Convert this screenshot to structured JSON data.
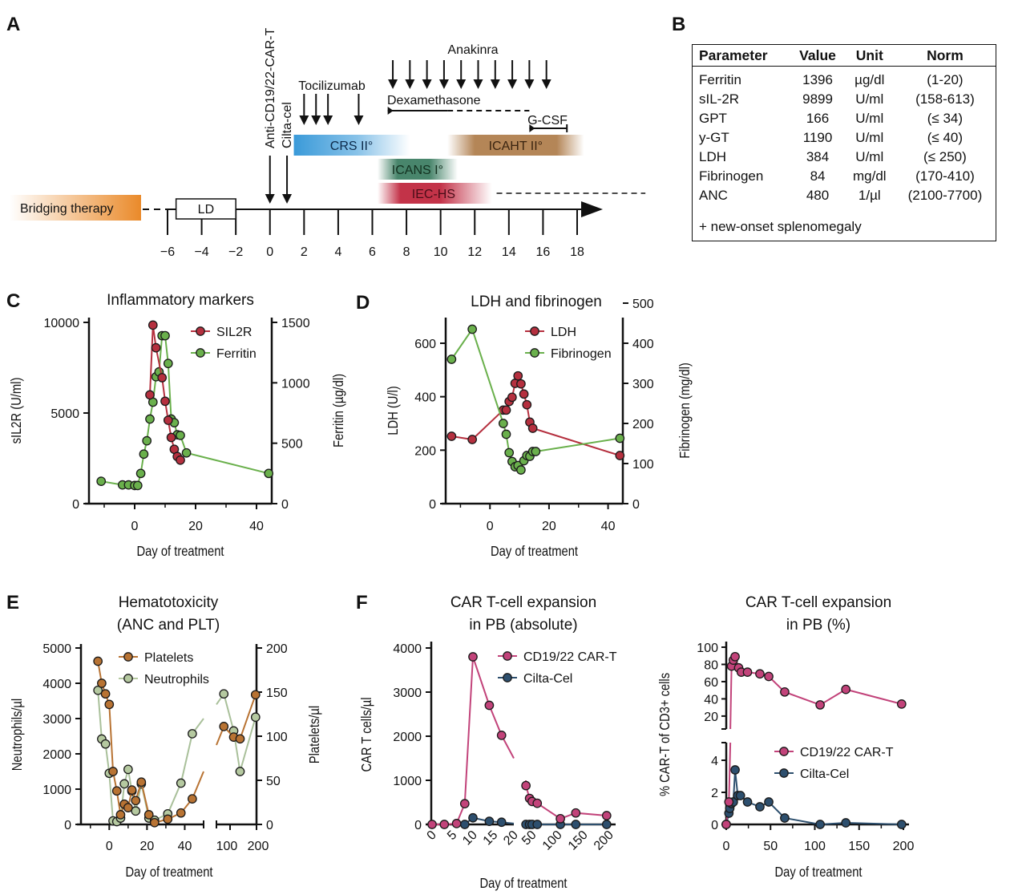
{
  "panel_letters": {
    "A": "A",
    "B": "B",
    "C": "C",
    "D": "D",
    "E": "E",
    "F": "F"
  },
  "timeline": {
    "axis_ticks": [
      "−6",
      "−4",
      "−2",
      "0",
      "2",
      "4",
      "6",
      "8",
      "10",
      "12",
      "14",
      "16",
      "18"
    ],
    "tick_values": [
      -6,
      -4,
      -2,
      0,
      2,
      4,
      6,
      8,
      10,
      12,
      14,
      16,
      18
    ],
    "bridging_label": "Bridging therapy",
    "ld_label": "LD",
    "ld_range": [
      -5.5,
      -2
    ],
    "infusions": [
      {
        "label": "Anti-CD19/22-CAR-T",
        "day": 0
      },
      {
        "label": "Cilta-cel",
        "day": 1
      }
    ],
    "tocilizumab": {
      "label": "Tocilizumab",
      "days": [
        2,
        2.7,
        3.4,
        5.2
      ]
    },
    "anakinra": {
      "label": "Anakinra",
      "days": [
        7.2,
        8.2,
        9.2,
        10.2,
        11.2,
        12.2,
        13.2,
        14.2,
        15.2,
        16.2
      ]
    },
    "dexamethasone": {
      "label": "Dexamethasone",
      "solid": [
        6.9,
        10.4
      ],
      "dashed": [
        10.4,
        15.2
      ]
    },
    "gcsf": {
      "label": "G-CSF",
      "range": [
        15.2,
        17.4
      ]
    },
    "bars": [
      {
        "label": "CRS II°",
        "start": 1.4,
        "end": 8.2,
        "color": "#3a9ad9",
        "row": 0
      },
      {
        "label": "ICAHT II°",
        "start": 10.4,
        "end": 18.4,
        "color": "#b07f4e",
        "row": 0
      },
      {
        "label": "ICANS I°",
        "start": 6.3,
        "end": 11.0,
        "color": "#3f7f64",
        "row": 1
      },
      {
        "label": "IEC-HS",
        "start": 6.3,
        "end": 13.0,
        "color": "#c0283f",
        "row": 2,
        "dashed_to": 22
      }
    ],
    "bridging_color": "#ea8a2a"
  },
  "table_b": {
    "headers": [
      "Parameter",
      "Value",
      "Unit",
      "Norm"
    ],
    "rows": [
      [
        "Ferritin",
        "1396",
        "µg/dl",
        "(1-20)"
      ],
      [
        "sIL-2R",
        "9899",
        "U/ml",
        "(158-613)"
      ],
      [
        "GPT",
        "166",
        "U/ml",
        "(≤ 34)"
      ],
      [
        "y-GT",
        "1190",
        "U/ml",
        "(≤ 40)"
      ],
      [
        "LDH",
        "384",
        "U/ml",
        "(≤ 250)"
      ],
      [
        "Fibrinogen",
        "84",
        "mg/dl",
        "(170-410)"
      ],
      [
        "ANC",
        "480",
        "1/µl",
        "(2100-7700)"
      ]
    ],
    "note": "+ new-onset splenomegaly"
  },
  "chart_data": [
    {
      "id": "C",
      "type": "line",
      "title": "Inflammatory markers",
      "xlabel": "Day of treatment",
      "ylabel": "sIL2R (U/ml)",
      "y2label": "Ferritin (µg/dl)",
      "xlim": [
        -15,
        45
      ],
      "xticks": [
        0,
        20,
        40
      ],
      "xminor": [
        -10,
        10,
        30
      ],
      "ylim": [
        0,
        10000
      ],
      "yticks": [
        0,
        5000,
        10000
      ],
      "y2lim": [
        0,
        1500
      ],
      "y2ticks": [
        0,
        500,
        1000,
        1500
      ],
      "legend": "top-right",
      "series": [
        {
          "name": "SIL2R",
          "axis": "left",
          "color": "#b5303f",
          "x": [
            5,
            6,
            7,
            9,
            10,
            11,
            12,
            13,
            14,
            15
          ],
          "y": [
            6000,
            9850,
            8600,
            6950,
            5650,
            4600,
            3650,
            3000,
            2600,
            2400
          ]
        },
        {
          "name": "Ferritin",
          "axis": "right",
          "color": "#6ab04c",
          "x": [
            -11,
            -4,
            -2,
            0,
            1,
            2,
            3,
            4,
            5,
            6,
            7,
            8,
            9,
            10,
            11,
            12,
            13,
            14,
            15,
            17,
            44
          ],
          "y": [
            185,
            155,
            155,
            150,
            150,
            250,
            410,
            520,
            700,
            840,
            1050,
            1090,
            1390,
            1390,
            1160,
            700,
            670,
            570,
            565,
            420,
            250
          ]
        }
      ]
    },
    {
      "id": "D",
      "type": "line",
      "title": "LDH and fibrinogen",
      "xlabel": "Day of treatment",
      "ylabel": "LDH (U/l)",
      "y2label": "Fibrinogen (mg/dl)",
      "xlim": [
        -15,
        45
      ],
      "xticks": [
        0,
        20,
        40
      ],
      "xminor": [
        -10,
        10,
        30
      ],
      "ylim": [
        0,
        750
      ],
      "yticks": [
        0,
        200,
        400,
        600
      ],
      "y2lim": [
        0,
        500
      ],
      "y2ticks": [
        0,
        100,
        200,
        300,
        400,
        500
      ],
      "legend": "top-right",
      "series": [
        {
          "name": "LDH",
          "axis": "left",
          "color": "#b5303f",
          "x": [
            -13,
            -6,
            4.5,
            5.5,
            6.5,
            7.5,
            8.5,
            9.5,
            10.5,
            11.5,
            12.5,
            13.5,
            14.5,
            44
          ],
          "y": [
            252,
            240,
            350,
            350,
            382,
            398,
            450,
            478,
            448,
            410,
            370,
            305,
            282,
            180
          ]
        },
        {
          "name": "Fibrinogen",
          "axis": "right",
          "color": "#6ab04c",
          "x": [
            -13,
            -6,
            4.5,
            5.5,
            6.5,
            7.5,
            8.5,
            9.5,
            10.5,
            11.5,
            12.5,
            13.5,
            14.5,
            15.5,
            44
          ],
          "y": [
            360,
            435,
            200,
            173,
            127,
            105,
            92,
            95,
            84,
            107,
            120,
            118,
            130,
            130,
            163
          ]
        }
      ]
    },
    {
      "id": "E",
      "type": "line",
      "title": "Hematotoxicity\n(ANC and PLT)",
      "title_lines": [
        "Hematotoxicity",
        "(ANC and PLT)"
      ],
      "xlabel": "Day of treatment",
      "ylabel": "Neutrophils/µl",
      "y2label": "Platelets/µl",
      "broken_axis": true,
      "segment1": {
        "xlim": [
          -15,
          50
        ],
        "xticks": [
          0,
          20,
          40
        ],
        "xminor": [
          -10,
          10,
          30,
          50
        ]
      },
      "segment2": {
        "xlim": [
          70,
          200
        ],
        "xticks": [
          100,
          200
        ],
        "xlabels": [
          "100",
          "200"
        ]
      },
      "ylim": [
        0,
        5000
      ],
      "yticks": [
        0,
        1000,
        2000,
        3000,
        4000,
        5000
      ],
      "y2lim": [
        0,
        200
      ],
      "y2ticks": [
        0,
        50,
        100,
        150,
        200
      ],
      "legend": "top-center",
      "series": [
        {
          "name": "Platelets",
          "axis": "right",
          "color": "#b87333",
          "x": [
            -6,
            -4,
            -2,
            0,
            2,
            4,
            6,
            8,
            10,
            12,
            14,
            17,
            21,
            24,
            31,
            38,
            44,
            85,
            110,
            130,
            195
          ],
          "y": [
            185,
            160,
            148,
            136,
            60,
            38,
            11,
            23,
            19,
            39,
            27,
            48,
            11,
            2,
            6,
            13,
            29,
            111,
            99,
            97,
            147
          ],
          "breaks": {
            "seg1_end_y": 60,
            "seg2_start_y": 90
          }
        },
        {
          "name": "Neutrophils",
          "axis": "left",
          "color": "#b5c9a0",
          "x": [
            -6,
            -4,
            -2,
            0,
            2,
            4,
            6,
            8,
            10,
            12,
            14,
            17,
            21,
            24,
            31,
            38,
            44,
            85,
            110,
            130,
            195
          ],
          "y": [
            3800,
            2420,
            2280,
            1450,
            100,
            80,
            180,
            1150,
            1560,
            940,
            380,
            1150,
            180,
            120,
            300,
            1170,
            2570,
            3700,
            2650,
            1500,
            3040
          ],
          "breaks": {
            "seg1_end_y": 3000,
            "seg2_start_y": 3400
          }
        }
      ]
    },
    {
      "id": "F1",
      "type": "line",
      "title": "CAR T-cell expansion\nin PB (absolute)",
      "title_lines": [
        "CAR T-cell expansion",
        "in PB (absolute)"
      ],
      "xlabel": "Day of treatment",
      "ylabel": "CAR T cells/µl",
      "broken_axis": true,
      "segment1": {
        "xlim": [
          0,
          20
        ],
        "xticks": [
          0,
          5,
          10,
          15,
          20
        ]
      },
      "segment2": {
        "xlim": [
          30,
          200
        ],
        "xticks": [
          50,
          100,
          150,
          200
        ]
      },
      "ylim": [
        0,
        4000
      ],
      "yticks": [
        0,
        1000,
        2000,
        3000,
        4000
      ],
      "legend": "top-right",
      "series": [
        {
          "name": "CD19/22 CAR-T",
          "color": "#c2437a",
          "x": [
            0,
            3,
            6,
            8,
            10,
            14,
            17,
            38,
            45,
            50,
            60,
            105,
            135,
            195
          ],
          "y": [
            0,
            0,
            20,
            470,
            3800,
            2700,
            2020,
            880,
            590,
            520,
            480,
            130,
            260,
            200
          ],
          "breaks": {
            "seg1_end_y": 1500,
            "seg2_start_y": 1000
          }
        },
        {
          "name": "Cilta-Cel",
          "color": "#2d4f6e",
          "x": [
            8,
            10,
            14,
            17,
            38,
            45,
            50,
            60,
            105,
            135,
            195
          ],
          "y": [
            0,
            150,
            70,
            50,
            0,
            0,
            0,
            0,
            0,
            0,
            0
          ],
          "breaks": {
            "seg1_end_y": 20,
            "seg2_start_y": 10
          }
        }
      ]
    },
    {
      "id": "F2",
      "type": "line",
      "title": "CAR T-cell expansion\nin PB (%)",
      "title_lines": [
        "CAR T-cell expansion",
        "in PB (%)"
      ],
      "xlabel": "Day of treatment",
      "ylabel": "% CAR-T of CD3+ cells",
      "broken_y_axis": true,
      "xlim": [
        0,
        200
      ],
      "xticks": [
        0,
        50,
        100,
        150,
        200
      ],
      "xminor": [
        25,
        75,
        125,
        175
      ],
      "upper": {
        "ylim": [
          5,
          100
        ],
        "yticks": [
          20,
          40,
          60,
          80,
          100
        ]
      },
      "lower": {
        "ylim": [
          0,
          5
        ],
        "yticks": [
          0,
          2,
          4
        ]
      },
      "legend": "lower-panel-right",
      "series": [
        {
          "name": "CD19/22 CAR-T",
          "color": "#c2437a",
          "x": [
            0,
            3,
            6,
            8,
            10,
            14,
            17,
            24,
            38,
            48,
            66,
            106,
            135,
            198
          ],
          "y": [
            0,
            1.4,
            78,
            85,
            89,
            76,
            71,
            71,
            69,
            66,
            48,
            33,
            51,
            34
          ]
        },
        {
          "name": "Cilta-Cel",
          "color": "#2d4f6e",
          "x": [
            0,
            3,
            4,
            6,
            8,
            10,
            13,
            16,
            24,
            38,
            48,
            66,
            106,
            135,
            198
          ],
          "y": [
            0,
            0.7,
            1.0,
            1.3,
            1.4,
            3.4,
            1.8,
            1.8,
            1.4,
            1.1,
            1.4,
            0.4,
            0,
            0.1,
            0
          ]
        }
      ]
    }
  ]
}
